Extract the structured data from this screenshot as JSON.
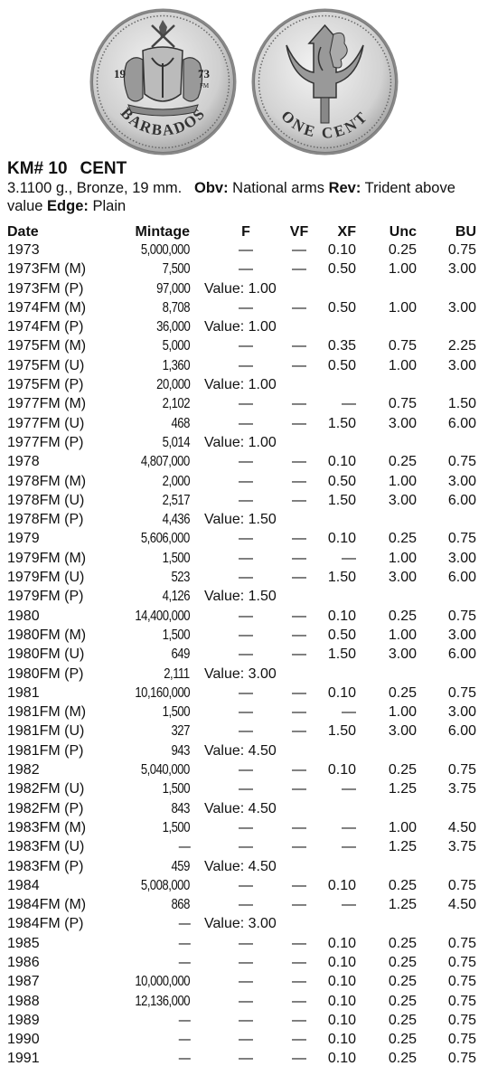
{
  "obverse": {
    "date_left": "19",
    "date_right": "73",
    "mint_mark": "FM",
    "legend": "BARBADOS"
  },
  "reverse": {
    "legend": "ONE CENT"
  },
  "title": {
    "km": "KM# 10",
    "name": "CENT"
  },
  "description": {
    "specs": "3.1100 g., Bronze, 19 mm.",
    "obv_label": "Obv:",
    "obv_text": "National arms",
    "rev_label": "Rev:",
    "rev_text": "Trident above value",
    "edge_label": "Edge:",
    "edge_text": "Plain"
  },
  "columns": {
    "date": "Date",
    "mintage": "Mintage",
    "f": "F",
    "vf": "VF",
    "xf": "XF",
    "unc": "Unc",
    "bu": "BU"
  },
  "rows": [
    {
      "date": "1973",
      "mintage": "5,000,000",
      "f": "—",
      "vf": "—",
      "xf": "0.10",
      "unc": "0.25",
      "bu": "0.75"
    },
    {
      "date": "1973FM (M)",
      "mintage": "7,500",
      "f": "—",
      "vf": "—",
      "xf": "0.50",
      "unc": "1.00",
      "bu": "3.00"
    },
    {
      "date": "1973FM (P)",
      "mintage": "97,000",
      "note": "Value: 1.00"
    },
    {
      "date": "1974FM (M)",
      "mintage": "8,708",
      "f": "—",
      "vf": "—",
      "xf": "0.50",
      "unc": "1.00",
      "bu": "3.00"
    },
    {
      "date": "1974FM (P)",
      "mintage": "36,000",
      "note": "Value: 1.00"
    },
    {
      "date": "1975FM (M)",
      "mintage": "5,000",
      "f": "—",
      "vf": "—",
      "xf": "0.35",
      "unc": "0.75",
      "bu": "2.25"
    },
    {
      "date": "1975FM (U)",
      "mintage": "1,360",
      "f": "—",
      "vf": "—",
      "xf": "0.50",
      "unc": "1.00",
      "bu": "3.00"
    },
    {
      "date": "1975FM (P)",
      "mintage": "20,000",
      "note": "Value: 1.00"
    },
    {
      "date": "1977FM (M)",
      "mintage": "2,102",
      "f": "—",
      "vf": "—",
      "xf": "—",
      "unc": "0.75",
      "bu": "1.50"
    },
    {
      "date": "1977FM (U)",
      "mintage": "468",
      "f": "—",
      "vf": "—",
      "xf": "1.50",
      "unc": "3.00",
      "bu": "6.00"
    },
    {
      "date": "1977FM (P)",
      "mintage": "5,014",
      "note": "Value: 1.00"
    },
    {
      "date": "1978",
      "mintage": "4,807,000",
      "f": "—",
      "vf": "—",
      "xf": "0.10",
      "unc": "0.25",
      "bu": "0.75"
    },
    {
      "date": "1978FM (M)",
      "mintage": "2,000",
      "f": "—",
      "vf": "—",
      "xf": "0.50",
      "unc": "1.00",
      "bu": "3.00"
    },
    {
      "date": "1978FM (U)",
      "mintage": "2,517",
      "f": "—",
      "vf": "—",
      "xf": "1.50",
      "unc": "3.00",
      "bu": "6.00"
    },
    {
      "date": "1978FM (P)",
      "mintage": "4,436",
      "note": "Value: 1.50"
    },
    {
      "date": "1979",
      "mintage": "5,606,000",
      "f": "—",
      "vf": "—",
      "xf": "0.10",
      "unc": "0.25",
      "bu": "0.75"
    },
    {
      "date": "1979FM (M)",
      "mintage": "1,500",
      "f": "—",
      "vf": "—",
      "xf": "—",
      "unc": "1.00",
      "bu": "3.00"
    },
    {
      "date": "1979FM (U)",
      "mintage": "523",
      "f": "—",
      "vf": "—",
      "xf": "1.50",
      "unc": "3.00",
      "bu": "6.00"
    },
    {
      "date": "1979FM (P)",
      "mintage": "4,126",
      "note": "Value: 1.50"
    },
    {
      "date": "1980",
      "mintage": "14,400,000",
      "f": "—",
      "vf": "—",
      "xf": "0.10",
      "unc": "0.25",
      "bu": "0.75"
    },
    {
      "date": "1980FM (M)",
      "mintage": "1,500",
      "f": "—",
      "vf": "—",
      "xf": "0.50",
      "unc": "1.00",
      "bu": "3.00"
    },
    {
      "date": "1980FM (U)",
      "mintage": "649",
      "f": "—",
      "vf": "—",
      "xf": "1.50",
      "unc": "3.00",
      "bu": "6.00"
    },
    {
      "date": "1980FM (P)",
      "mintage": "2,111",
      "note": "Value: 3.00"
    },
    {
      "date": "1981",
      "mintage": "10,160,000",
      "f": "—",
      "vf": "—",
      "xf": "0.10",
      "unc": "0.25",
      "bu": "0.75"
    },
    {
      "date": "1981FM (M)",
      "mintage": "1,500",
      "f": "—",
      "vf": "—",
      "xf": "—",
      "unc": "1.00",
      "bu": "3.00"
    },
    {
      "date": "1981FM (U)",
      "mintage": "327",
      "f": "—",
      "vf": "—",
      "xf": "1.50",
      "unc": "3.00",
      "bu": "6.00"
    },
    {
      "date": "1981FM (P)",
      "mintage": "943",
      "note": "Value: 4.50"
    },
    {
      "date": "1982",
      "mintage": "5,040,000",
      "f": "—",
      "vf": "—",
      "xf": "0.10",
      "unc": "0.25",
      "bu": "0.75"
    },
    {
      "date": "1982FM (U)",
      "mintage": "1,500",
      "f": "—",
      "vf": "—",
      "xf": "—",
      "unc": "1.25",
      "bu": "3.75"
    },
    {
      "date": "1982FM (P)",
      "mintage": "843",
      "note": "Value: 4.50"
    },
    {
      "date": "1983FM (M)",
      "mintage": "1,500",
      "f": "—",
      "vf": "—",
      "xf": "—",
      "unc": "1.00",
      "bu": "4.50"
    },
    {
      "date": "1983FM (U)",
      "mintage": "—",
      "f": "—",
      "vf": "—",
      "xf": "—",
      "unc": "1.25",
      "bu": "3.75"
    },
    {
      "date": "1983FM (P)",
      "mintage": "459",
      "note": "Value: 4.50"
    },
    {
      "date": "1984",
      "mintage": "5,008,000",
      "f": "—",
      "vf": "—",
      "xf": "0.10",
      "unc": "0.25",
      "bu": "0.75"
    },
    {
      "date": "1984FM (M)",
      "mintage": "868",
      "f": "—",
      "vf": "—",
      "xf": "—",
      "unc": "1.25",
      "bu": "4.50"
    },
    {
      "date": "1984FM (P)",
      "mintage": "—",
      "note": "Value: 3.00"
    },
    {
      "date": "1985",
      "mintage": "—",
      "f": "—",
      "vf": "—",
      "xf": "0.10",
      "unc": "0.25",
      "bu": "0.75"
    },
    {
      "date": "1986",
      "mintage": "—",
      "f": "—",
      "vf": "—",
      "xf": "0.10",
      "unc": "0.25",
      "bu": "0.75"
    },
    {
      "date": "1987",
      "mintage": "10,000,000",
      "f": "—",
      "vf": "—",
      "xf": "0.10",
      "unc": "0.25",
      "bu": "0.75"
    },
    {
      "date": "1988",
      "mintage": "12,136,000",
      "f": "—",
      "vf": "—",
      "xf": "0.10",
      "unc": "0.25",
      "bu": "0.75"
    },
    {
      "date": "1989",
      "mintage": "—",
      "f": "—",
      "vf": "—",
      "xf": "0.10",
      "unc": "0.25",
      "bu": "0.75"
    },
    {
      "date": "1990",
      "mintage": "—",
      "f": "—",
      "vf": "—",
      "xf": "0.10",
      "unc": "0.25",
      "bu": "0.75"
    },
    {
      "date": "1991",
      "mintage": "—",
      "f": "—",
      "vf": "—",
      "xf": "0.10",
      "unc": "0.25",
      "bu": "0.75"
    }
  ]
}
